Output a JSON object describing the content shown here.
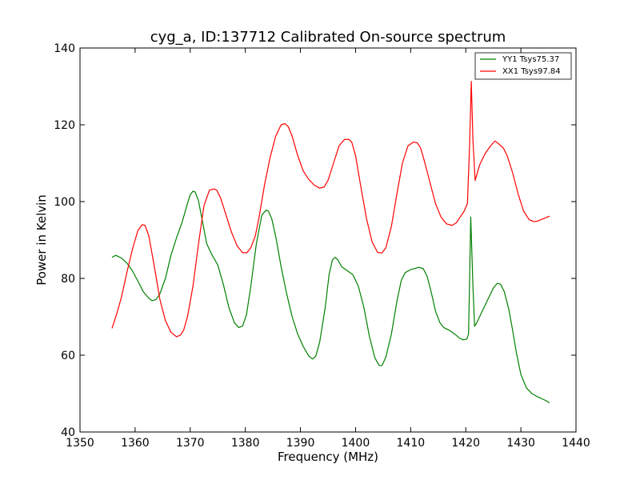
{
  "chart_data": {
    "type": "line",
    "title": "cyg_a, ID:137712 Calibrated On-source spectrum",
    "xlabel": "Frequency (MHz)",
    "ylabel": "Power in Kelvin",
    "xlim": [
      1350,
      1440
    ],
    "ylim": [
      40,
      140
    ],
    "xticks": [
      1350,
      1360,
      1370,
      1380,
      1390,
      1400,
      1410,
      1420,
      1430,
      1440
    ],
    "yticks": [
      40,
      60,
      80,
      100,
      120,
      140
    ],
    "xtick_labels": [
      "1350",
      "1360",
      "1370",
      "1380",
      "1390",
      "1400",
      "1410",
      "1420",
      "1430",
      "1440"
    ],
    "ytick_labels": [
      "40",
      "60",
      "80",
      "100",
      "120",
      "140"
    ],
    "grid": false,
    "legend": "top-right",
    "series": [
      {
        "name": "YY1 Tsys75.37",
        "color": "#008000",
        "x": [
          1355.8,
          1356.5,
          1357.5,
          1358.5,
          1359.5,
          1360.5,
          1361.5,
          1362.5,
          1363.1,
          1363.8,
          1364.5,
          1365.5,
          1366.5,
          1367.5,
          1368.5,
          1369.5,
          1370.0,
          1370.5,
          1370.9,
          1371.5,
          1372.2,
          1373.0,
          1374.0,
          1375.0,
          1376.0,
          1377.0,
          1378.0,
          1378.8,
          1379.5,
          1380.2,
          1381.0,
          1382.0,
          1383.0,
          1383.8,
          1384.2,
          1384.8,
          1385.5,
          1386.5,
          1387.5,
          1388.5,
          1389.5,
          1390.5,
          1391.5,
          1392.2,
          1392.8,
          1393.5,
          1394.5,
          1395.2,
          1395.8,
          1396.3,
          1396.8,
          1397.5,
          1398.5,
          1399.5,
          1400.5,
          1401.5,
          1402.5,
          1403.5,
          1404.3,
          1404.8,
          1405.5,
          1406.5,
          1407.5,
          1408.3,
          1409.0,
          1410.0,
          1410.8,
          1411.5,
          1412.3,
          1413.0,
          1413.8,
          1414.5,
          1415.3,
          1416.0,
          1417.0,
          1418.0,
          1418.8,
          1419.5,
          1420.2,
          1420.5,
          1420.7,
          1420.9,
          1421.3,
          1421.6,
          1422.0,
          1423.0,
          1424.0,
          1425.0,
          1425.7,
          1426.3,
          1427.0,
          1427.8,
          1428.5,
          1429.2,
          1430.0,
          1431.0,
          1432.0,
          1433.0,
          1434.5,
          1435.2
        ],
        "y": [
          85.5,
          86.0,
          85.3,
          84.0,
          82.0,
          79.3,
          76.5,
          74.8,
          74.2,
          74.5,
          76.0,
          80.0,
          86.0,
          90.5,
          94.5,
          99.5,
          101.8,
          102.7,
          102.5,
          100.2,
          95.0,
          89.0,
          86.0,
          83.5,
          78.5,
          72.5,
          68.5,
          67.2,
          67.6,
          70.5,
          78.0,
          89.0,
          96.5,
          97.8,
          97.5,
          95.5,
          91.0,
          83.0,
          76.0,
          70.0,
          65.5,
          62.3,
          59.8,
          59.0,
          59.8,
          63.5,
          72.5,
          81.0,
          84.8,
          85.5,
          84.8,
          83.0,
          82.0,
          81.0,
          78.0,
          72.5,
          65.0,
          59.3,
          57.3,
          57.3,
          59.5,
          65.5,
          74.0,
          79.5,
          81.5,
          82.3,
          82.6,
          82.9,
          82.5,
          80.5,
          76.0,
          71.5,
          68.5,
          67.2,
          66.5,
          65.5,
          64.5,
          64.0,
          64.2,
          65.5,
          80.0,
          96.0,
          78.0,
          67.5,
          68.5,
          71.5,
          74.5,
          77.5,
          78.7,
          78.5,
          76.5,
          72.0,
          66.5,
          60.5,
          55.0,
          51.5,
          50.0,
          49.2,
          48.2,
          47.6
        ]
      },
      {
        "name": "XX1 Tsys97.84",
        "color": "#ff0000",
        "x": [
          1355.8,
          1356.5,
          1357.5,
          1358.5,
          1359.5,
          1360.5,
          1361.3,
          1361.8,
          1362.5,
          1363.5,
          1364.5,
          1365.5,
          1366.5,
          1367.5,
          1368.2,
          1368.8,
          1369.5,
          1370.5,
          1371.5,
          1372.5,
          1373.5,
          1374.3,
          1374.8,
          1375.5,
          1376.5,
          1377.5,
          1378.5,
          1379.5,
          1380.3,
          1381.0,
          1381.8,
          1382.5,
          1383.5,
          1384.5,
          1385.5,
          1386.5,
          1387.2,
          1387.8,
          1388.5,
          1389.5,
          1390.5,
          1391.5,
          1392.5,
          1393.5,
          1394.3,
          1395.0,
          1396.0,
          1397.0,
          1398.0,
          1398.8,
          1399.3,
          1400.0,
          1401.0,
          1402.0,
          1403.0,
          1404.0,
          1404.8,
          1405.5,
          1406.5,
          1407.5,
          1408.5,
          1409.5,
          1410.5,
          1411.2,
          1411.8,
          1412.5,
          1413.5,
          1414.5,
          1415.5,
          1416.5,
          1417.5,
          1418.3,
          1419.0,
          1419.7,
          1420.3,
          1420.7,
          1421.0,
          1421.3,
          1421.7,
          1422.5,
          1423.5,
          1424.5,
          1425.3,
          1426.0,
          1426.8,
          1427.5,
          1428.5,
          1429.5,
          1430.5,
          1431.5,
          1432.3,
          1433.0,
          1434.0,
          1435.2
        ],
        "y": [
          67.0,
          70.0,
          75.0,
          81.5,
          87.5,
          92.5,
          94.0,
          93.8,
          91.0,
          83.0,
          74.5,
          69.0,
          66.0,
          64.8,
          65.2,
          66.5,
          70.0,
          78.0,
          89.0,
          99.0,
          103.0,
          103.3,
          103.0,
          101.0,
          96.5,
          92.0,
          88.5,
          86.7,
          86.7,
          88.0,
          91.0,
          96.0,
          104.5,
          111.5,
          117.0,
          120.0,
          120.3,
          119.5,
          117.0,
          112.0,
          108.0,
          105.8,
          104.3,
          103.5,
          103.8,
          105.5,
          110.0,
          114.5,
          116.2,
          116.2,
          115.5,
          112.0,
          103.5,
          95.5,
          89.5,
          86.8,
          86.6,
          88.0,
          93.5,
          102.0,
          110.0,
          114.5,
          115.5,
          115.3,
          114.0,
          110.5,
          105.0,
          99.5,
          96.0,
          94.2,
          93.8,
          94.5,
          96.0,
          97.5,
          99.5,
          115.0,
          131.3,
          116.0,
          105.5,
          109.5,
          112.5,
          114.5,
          115.8,
          115.0,
          114.0,
          112.0,
          107.5,
          102.0,
          97.5,
          95.3,
          94.8,
          94.9,
          95.5,
          96.2
        ]
      }
    ]
  }
}
